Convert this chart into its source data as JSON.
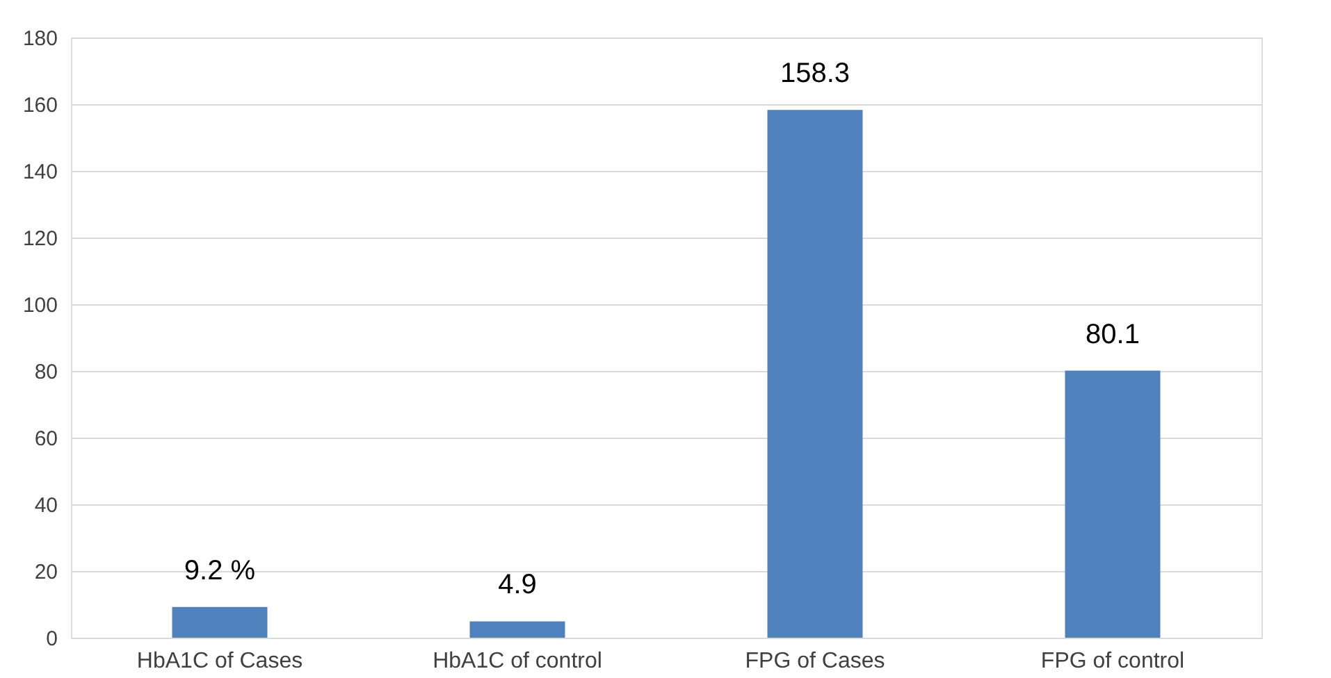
{
  "chart_data": {
    "type": "bar",
    "categories": [
      "HbA1C of Cases",
      "HbA1C of control",
      "FPG of Cases",
      "FPG of control"
    ],
    "values": [
      9.2,
      4.9,
      158.3,
      80.1
    ],
    "value_labels": [
      "9.2 %",
      "4.9",
      "158.3",
      "80.1"
    ],
    "color": "#4f81bd",
    "ylim": [
      0,
      180
    ],
    "yticks": [
      0,
      20,
      40,
      60,
      80,
      100,
      120,
      140,
      160,
      180
    ],
    "grid": "y"
  }
}
